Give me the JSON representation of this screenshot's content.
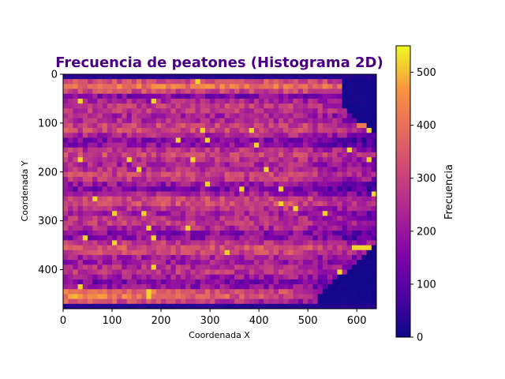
{
  "chart_data": {
    "type": "heatmap",
    "title": "Frecuencia de peatones (Histograma 2D)",
    "title_color": "#4b0082",
    "xlabel": "Coordenada X",
    "ylabel": "Coordenada Y",
    "colorbar_label": "Frecuencia",
    "colormap": "plasma",
    "xlim": [
      0,
      640
    ],
    "ylim": [
      480,
      0
    ],
    "y_inverted": true,
    "x_ticks": [
      0,
      100,
      200,
      300,
      400,
      500,
      600
    ],
    "y_ticks": [
      0,
      100,
      200,
      300,
      400
    ],
    "colorbar_range": [
      0,
      550
    ],
    "colorbar_ticks": [
      0,
      100,
      200,
      300,
      400,
      500
    ],
    "bins": {
      "x": 64,
      "y": 48
    },
    "bin_width": 10,
    "typical_interior_frequency": 250,
    "peak_frequency": 550,
    "grid": false,
    "notes_visible": []
  }
}
